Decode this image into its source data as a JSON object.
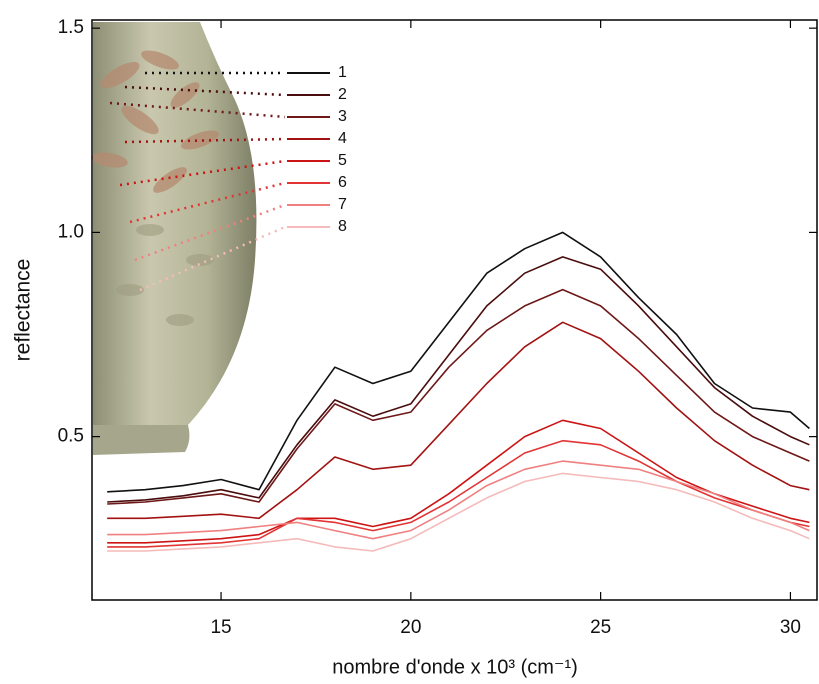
{
  "chart_data": {
    "type": "line",
    "xlabel": "nombre d'onde x 10³ (cm⁻¹)",
    "ylabel": "reflectance",
    "x": [
      12,
      13,
      14,
      15,
      16,
      17,
      18,
      19,
      20,
      21,
      22,
      23,
      24,
      25,
      26,
      27,
      28,
      29,
      30,
      30.5
    ],
    "xlim": [
      11.6,
      30.7
    ],
    "xticks": [
      15,
      20,
      25,
      30
    ],
    "ylim": [
      0.1,
      1.52
    ],
    "yticks": [
      0.5,
      {
        "value": 1,
        "label": "1.0"
      },
      1.5
    ],
    "legend": "upper left",
    "series": [
      {
        "name": "1",
        "color": "#111111",
        "values": [
          0.365,
          0.37,
          0.38,
          0.395,
          0.37,
          0.54,
          0.67,
          0.63,
          0.66,
          0.78,
          0.9,
          0.96,
          1.0,
          0.94,
          0.84,
          0.75,
          0.63,
          0.57,
          0.56,
          0.52
        ]
      },
      {
        "name": "2",
        "color": "#4a0c0c",
        "values": [
          0.34,
          0.345,
          0.355,
          0.37,
          0.35,
          0.48,
          0.59,
          0.55,
          0.58,
          0.7,
          0.82,
          0.9,
          0.94,
          0.91,
          0.82,
          0.72,
          0.62,
          0.55,
          0.5,
          0.48
        ]
      },
      {
        "name": "3",
        "color": "#6e1818",
        "values": [
          0.335,
          0.34,
          0.35,
          0.36,
          0.34,
          0.47,
          0.58,
          0.54,
          0.56,
          0.67,
          0.76,
          0.82,
          0.86,
          0.82,
          0.74,
          0.65,
          0.56,
          0.5,
          0.46,
          0.44
        ]
      },
      {
        "name": "4",
        "color": "#a31212",
        "values": [
          0.3,
          0.3,
          0.305,
          0.31,
          0.3,
          0.37,
          0.45,
          0.42,
          0.43,
          0.53,
          0.63,
          0.72,
          0.78,
          0.74,
          0.66,
          0.57,
          0.49,
          0.43,
          0.38,
          0.37
        ]
      },
      {
        "name": "5",
        "color": "#cc1414",
        "values": [
          0.24,
          0.24,
          0.245,
          0.25,
          0.26,
          0.3,
          0.3,
          0.28,
          0.3,
          0.36,
          0.43,
          0.5,
          0.54,
          0.52,
          0.46,
          0.4,
          0.36,
          0.33,
          0.3,
          0.29
        ]
      },
      {
        "name": "6",
        "color": "#e23434",
        "values": [
          0.23,
          0.23,
          0.235,
          0.24,
          0.25,
          0.3,
          0.29,
          0.27,
          0.29,
          0.34,
          0.4,
          0.46,
          0.49,
          0.48,
          0.44,
          0.39,
          0.35,
          0.32,
          0.29,
          0.28
        ]
      },
      {
        "name": "7",
        "color": "#f08080",
        "values": [
          0.26,
          0.26,
          0.265,
          0.27,
          0.28,
          0.29,
          0.27,
          0.25,
          0.27,
          0.32,
          0.38,
          0.42,
          0.44,
          0.43,
          0.42,
          0.39,
          0.36,
          0.32,
          0.29,
          0.27
        ]
      },
      {
        "name": "8",
        "color": "#f5baba",
        "values": [
          0.22,
          0.22,
          0.225,
          0.23,
          0.24,
          0.25,
          0.23,
          0.22,
          0.25,
          0.3,
          0.35,
          0.39,
          0.41,
          0.4,
          0.39,
          0.37,
          0.34,
          0.3,
          0.27,
          0.25
        ]
      }
    ]
  }
}
